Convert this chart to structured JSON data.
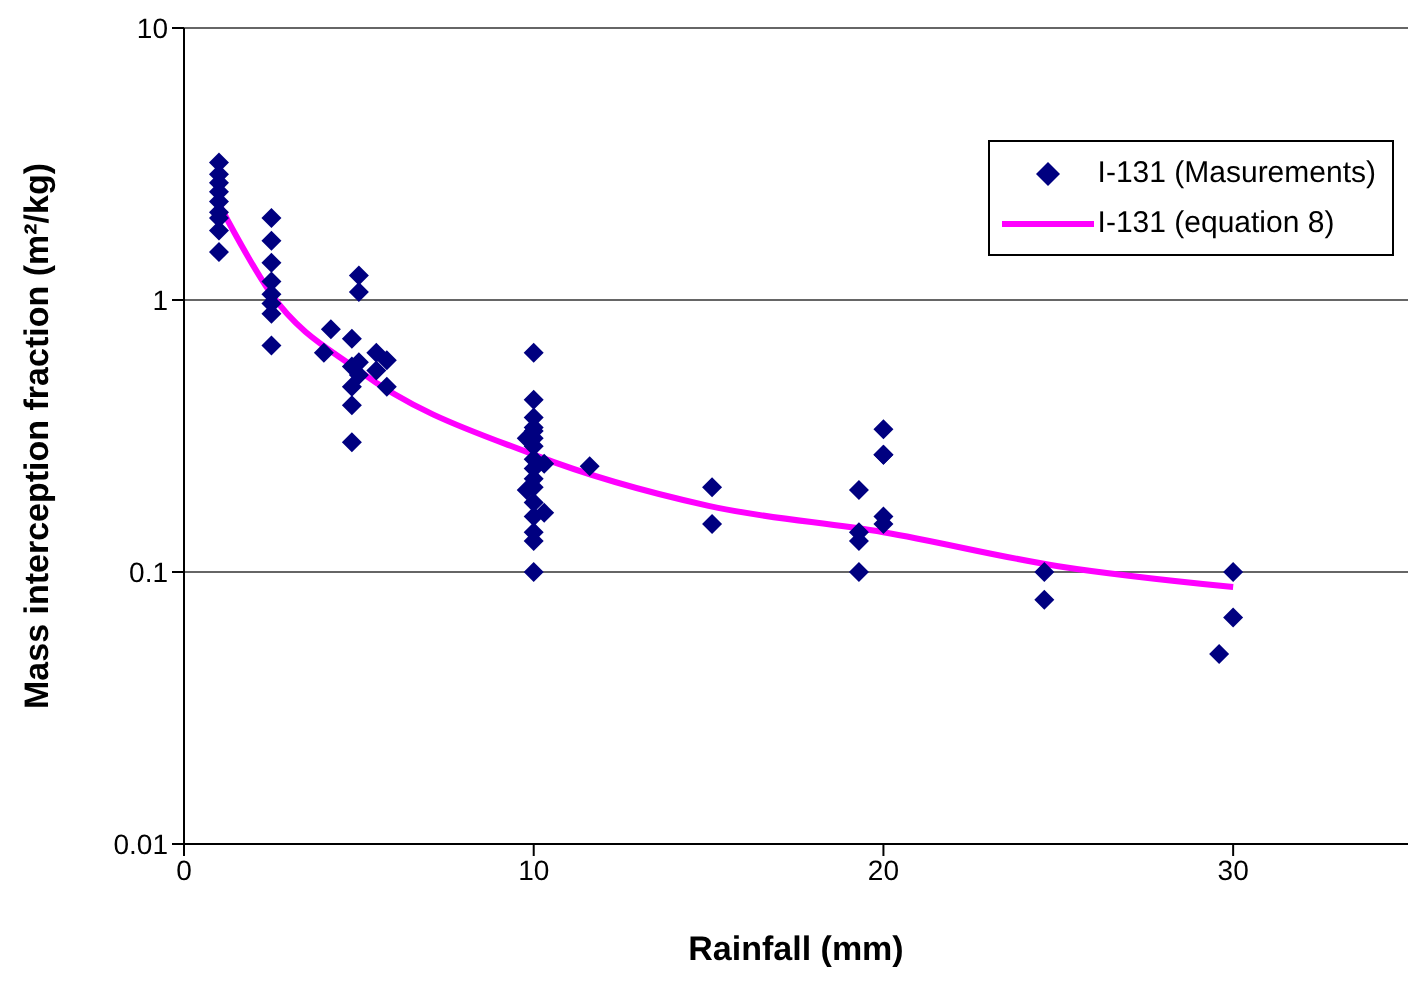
{
  "chart_data": {
    "type": "scatter",
    "xlabel": "Rainfall (mm)",
    "ylabel": "Mass interception fraction (m²/kg)",
    "log": "y",
    "xlim": [
      0,
      35
    ],
    "xticks": [
      0,
      10,
      20,
      30
    ],
    "ylim": [
      0.01,
      10
    ],
    "yticks": [
      0.01,
      0.1,
      1,
      10
    ],
    "grid": "y",
    "legend": "top right",
    "series": [
      {
        "name": "I-131 (Masurements)",
        "color": "#000080",
        "marker": "diamond",
        "x": [
          1,
          1,
          1,
          1,
          1,
          1,
          1,
          1,
          1,
          2.5,
          2.5,
          2.5,
          2.5,
          2.5,
          2.5,
          2.5,
          2.5,
          4,
          4.2,
          4.8,
          4.8,
          4.8,
          4.8,
          4.8,
          5,
          5,
          5,
          5,
          5.5,
          5.5,
          5.8,
          5.8,
          10,
          10,
          10,
          10,
          10,
          10,
          10,
          10,
          10,
          10,
          10,
          10,
          10,
          10,
          10,
          10,
          9.8,
          9.8,
          10.3,
          10.3,
          11.6,
          15.1,
          15.1,
          19.3,
          19.3,
          19.3,
          19.3,
          20,
          20,
          20,
          20,
          20,
          24.6,
          24.6,
          30,
          30,
          29.6
        ],
        "values": [
          3.2,
          2.9,
          2.7,
          2.5,
          2.3,
          2.1,
          2.0,
          1.8,
          1.5,
          2.0,
          1.65,
          1.37,
          1.17,
          1.05,
          0.97,
          0.89,
          0.68,
          0.64,
          0.78,
          0.72,
          0.57,
          0.48,
          0.41,
          0.3,
          1.23,
          1.07,
          0.59,
          0.53,
          0.64,
          0.55,
          0.6,
          0.48,
          0.64,
          0.43,
          0.37,
          0.34,
          0.33,
          0.31,
          0.29,
          0.26,
          0.24,
          0.22,
          0.205,
          0.18,
          0.16,
          0.14,
          0.13,
          0.1,
          0.31,
          0.2,
          0.25,
          0.165,
          0.245,
          0.205,
          0.15,
          0.2,
          0.14,
          0.13,
          0.1,
          0.335,
          0.27,
          0.27,
          0.16,
          0.15,
          0.1,
          0.079,
          0.1,
          0.068,
          0.05
        ]
      },
      {
        "type": "line",
        "name": "I-131 (equation 8)",
        "color": "#ff00ff",
        "marker": "none",
        "x": [
          1,
          2.5,
          5,
          10,
          15,
          20,
          25,
          30
        ],
        "values": [
          2.25,
          1.05,
          0.55,
          0.27,
          0.175,
          0.14,
          0.105,
          0.088
        ]
      }
    ]
  }
}
